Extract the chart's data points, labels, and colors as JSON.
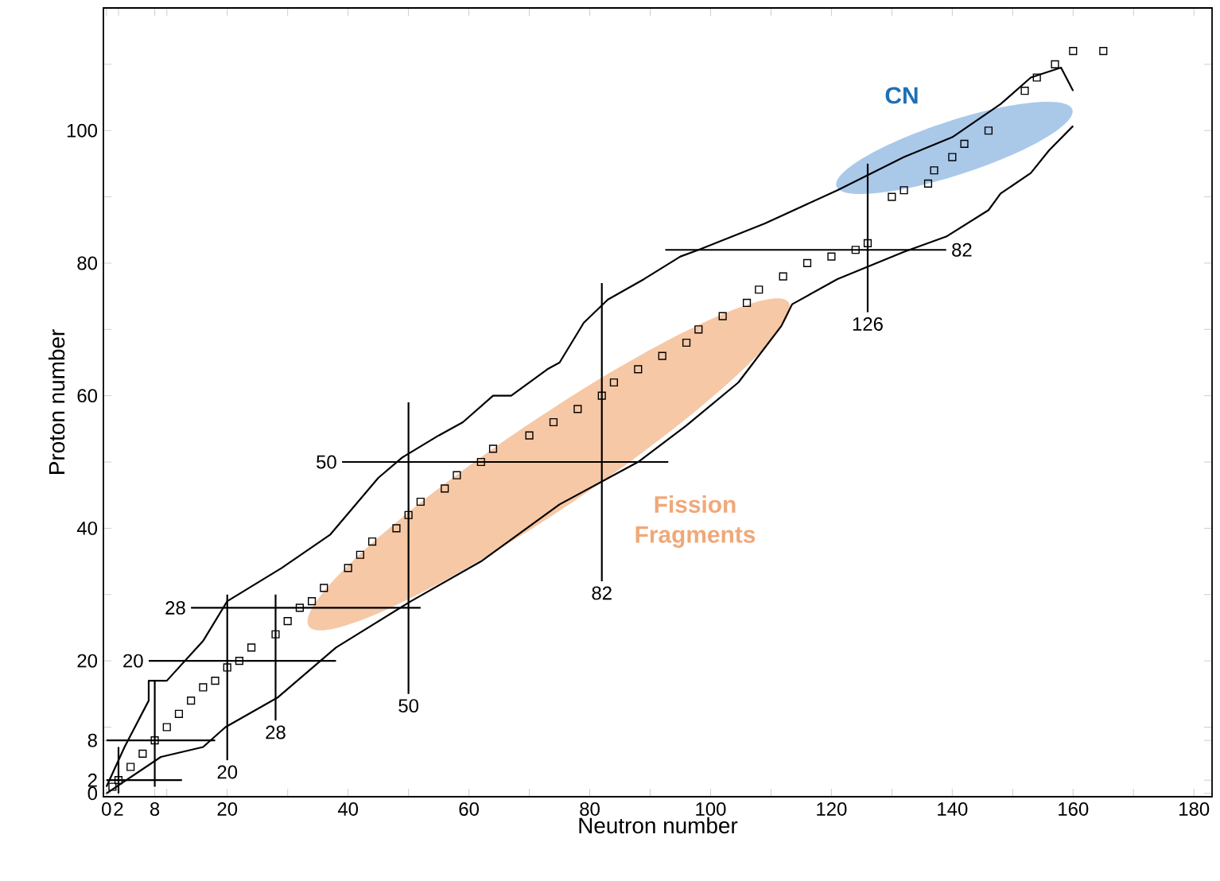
{
  "chart_data": {
    "type": "line",
    "xlabel": "Neutron number",
    "ylabel": "Proton number",
    "xlim": [
      -0.5,
      183
    ],
    "ylim": [
      -0.5,
      118.5
    ],
    "xticks": [
      0,
      2,
      8,
      {
        "value": 10,
        "label": null
      },
      20,
      {
        "value": 30,
        "label": null
      },
      40,
      {
        "value": 50,
        "label": null
      },
      60,
      {
        "value": 70,
        "label": null
      },
      80,
      {
        "value": 90,
        "label": null
      },
      100,
      {
        "value": 110,
        "label": null
      },
      120,
      {
        "value": 130,
        "label": null
      },
      140,
      {
        "value": 150,
        "label": null
      },
      160,
      {
        "value": 170,
        "label": null
      },
      180
    ],
    "yticks": [
      0,
      2,
      8,
      {
        "value": 10,
        "label": null
      },
      20,
      {
        "value": 30,
        "label": null
      },
      40,
      {
        "value": 50,
        "label": null
      },
      60,
      {
        "value": 70,
        "label": null
      },
      80,
      {
        "value": 90,
        "label": null
      },
      100,
      {
        "value": 110,
        "label": null
      }
    ],
    "series": [
      {
        "color": "#000000",
        "marker": "none",
        "x": [
          0,
          3,
          7,
          7,
          10,
          16,
          20,
          29,
          37,
          45,
          49,
          55,
          59,
          64,
          67,
          73,
          75,
          79,
          83,
          89,
          95,
          98,
          109,
          121,
          132,
          140,
          148,
          153,
          158,
          160
        ],
        "values": [
          1,
          7,
          14,
          17,
          17,
          23,
          29,
          34,
          39,
          47.6,
          50.7,
          54,
          56,
          60,
          60,
          64,
          65,
          71,
          74.5,
          77.6,
          81,
          82,
          86,
          91,
          96,
          99,
          104,
          108,
          109.5,
          106
        ]
      },
      {
        "color": "#000000",
        "marker": "none",
        "x": [
          160,
          156,
          153,
          148,
          146,
          139,
          132,
          121,
          113.5,
          111.7,
          104.6,
          96,
          88,
          75,
          62,
          50.4,
          38,
          28.4,
          19.7,
          16,
          9,
          0
        ],
        "values": [
          100.7,
          97,
          93.6,
          90.5,
          88,
          84,
          81.7,
          77.6,
          73.8,
          70.5,
          62,
          55.5,
          50,
          43.6,
          35,
          29,
          22,
          14.5,
          10,
          7,
          5.5,
          0
        ]
      },
      {
        "type": "scatter",
        "color": "#000000",
        "marker": "square",
        "x": [
          1,
          2,
          4,
          6,
          8,
          10,
          12,
          14,
          16,
          18,
          20,
          22,
          24,
          28,
          30,
          32,
          34,
          36,
          40,
          42,
          44,
          48,
          50,
          52,
          56,
          58,
          62,
          64,
          70,
          74,
          78,
          82,
          84,
          88,
          92,
          96,
          98,
          102,
          106,
          108,
          112,
          116,
          120,
          124,
          126,
          130,
          132,
          136,
          137,
          140,
          142,
          146,
          152,
          154,
          157,
          160,
          165
        ],
        "values": [
          1,
          2,
          4,
          6,
          8,
          10,
          12,
          14,
          16,
          17,
          19,
          20,
          22,
          24,
          26,
          28,
          29,
          31,
          34,
          36,
          38,
          40,
          42,
          44,
          46,
          48,
          50,
          52,
          54,
          56,
          58,
          60,
          62,
          64,
          66,
          68,
          70,
          72,
          74,
          76,
          78,
          80,
          81,
          82,
          83,
          90,
          91,
          92,
          94,
          96,
          98,
          100,
          106,
          108,
          110,
          112,
          112
        ]
      },
      {
        "type": "line",
        "color": "#000000",
        "marker": "none",
        "x": [
          2,
          2
        ],
        "values": [
          0,
          7
        ]
      },
      {
        "type": "line",
        "color": "#000000",
        "marker": "none",
        "x": [
          8,
          8
        ],
        "values": [
          1,
          17
        ]
      },
      {
        "type": "line",
        "color": "#000000",
        "marker": "none",
        "x": [
          0,
          12.5
        ],
        "values": [
          2,
          2
        ]
      },
      {
        "type": "line",
        "color": "#000000",
        "marker": "none",
        "x": [
          0,
          18
        ],
        "values": [
          8,
          8
        ]
      },
      {
        "type": "line",
        "name": "20",
        "color": "#000000",
        "marker": "none",
        "x": [
          20,
          20
        ],
        "values": [
          5,
          30
        ]
      },
      {
        "type": "line",
        "name": "20",
        "color": "#000000",
        "marker": "none",
        "x": [
          7,
          38
        ],
        "values": [
          20,
          20
        ]
      },
      {
        "type": "line",
        "name": "28",
        "color": "#000000",
        "marker": "none",
        "x": [
          28,
          28
        ],
        "values": [
          11,
          30
        ]
      },
      {
        "type": "line",
        "name": "28",
        "color": "#000000",
        "marker": "none",
        "x": [
          14,
          52
        ],
        "values": [
          28,
          28
        ]
      },
      {
        "type": "line",
        "name": "50",
        "color": "#000000",
        "marker": "none",
        "x": [
          50,
          50
        ],
        "values": [
          15,
          59
        ]
      },
      {
        "type": "line",
        "name": "50",
        "color": "#000000",
        "marker": "none",
        "x": [
          39,
          93
        ],
        "values": [
          50,
          50
        ]
      },
      {
        "type": "line",
        "name": "82",
        "color": "#000000",
        "marker": "none",
        "x": [
          82,
          82
        ],
        "values": [
          32,
          77
        ]
      },
      {
        "type": "line",
        "name": "82",
        "color": "#000000",
        "marker": "none",
        "x": [
          139,
          92.5
        ],
        "values": [
          82,
          82
        ]
      },
      {
        "type": "line",
        "name": "126",
        "color": "#000000",
        "marker": "none",
        "x": [
          126,
          126
        ],
        "values": [
          72.6,
          95
        ]
      }
    ],
    "annotations": [
      "CN",
      "Fission Fragments"
    ],
    "line_style": "solid"
  }
}
